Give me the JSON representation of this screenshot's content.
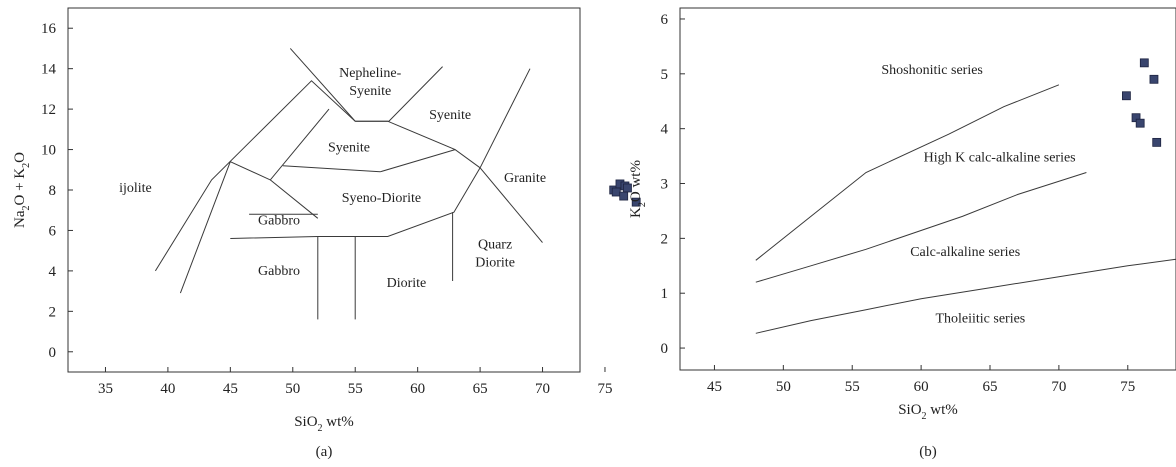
{
  "chart_data": [
    {
      "panel_label": "(a)",
      "type": "scatter",
      "xlabel": {
        "main": "SiO",
        "sub": "2",
        "tail": " wt%"
      },
      "ylabel": {
        "parts": [
          [
            "Na",
            false
          ],
          [
            "2",
            true
          ],
          [
            "O + K",
            false
          ],
          [
            "2",
            true
          ],
          [
            "O",
            false
          ]
        ]
      },
      "xlim": [
        32,
        73
      ],
      "ylim": [
        -1,
        17
      ],
      "xticks": [
        35,
        40,
        45,
        50,
        55,
        60,
        65,
        70,
        75
      ],
      "yticks": [
        0,
        2,
        4,
        6,
        8,
        10,
        12,
        14,
        16
      ],
      "field_labels": [
        {
          "lines": [
            "Nepheline-",
            "Syenite"
          ],
          "x": 56.2,
          "y": 13.6
        },
        {
          "lines": [
            "Syenite"
          ],
          "x": 62.6,
          "y": 11.5
        },
        {
          "lines": [
            "Syenite"
          ],
          "x": 54.5,
          "y": 9.9
        },
        {
          "lines": [
            "Syeno-Diorite"
          ],
          "x": 57.1,
          "y": 7.4
        },
        {
          "lines": [
            "Granite"
          ],
          "x": 68.6,
          "y": 8.4
        },
        {
          "lines": [
            "ijolite"
          ],
          "x": 37.4,
          "y": 7.9
        },
        {
          "lines": [
            "Gabbro"
          ],
          "x": 48.9,
          "y": 6.3
        },
        {
          "lines": [
            "Gabbro"
          ],
          "x": 48.9,
          "y": 3.8
        },
        {
          "lines": [
            "Diorite"
          ],
          "x": 59.1,
          "y": 3.2
        },
        {
          "lines": [
            "Quarz",
            "Diorite"
          ],
          "x": 66.2,
          "y": 5.1
        }
      ],
      "boundaries": [
        [
          [
            39,
            4
          ],
          [
            43.5,
            8.5
          ],
          [
            51.5,
            13.4
          ],
          [
            55,
            11.4
          ]
        ],
        [
          [
            49.8,
            15
          ],
          [
            55,
            11.4
          ],
          [
            57.7,
            11.4
          ],
          [
            62,
            14.1
          ]
        ],
        [
          [
            41,
            2.9
          ],
          [
            45,
            9.4
          ],
          [
            48.2,
            8.5
          ],
          [
            52.9,
            12
          ]
        ],
        [
          [
            48.2,
            8.5
          ],
          [
            52,
            6.6
          ]
        ],
        [
          [
            45,
            5.6
          ],
          [
            52,
            5.7
          ],
          [
            57.6,
            5.7
          ],
          [
            62.9,
            6.9
          ],
          [
            65,
            9.1
          ],
          [
            69,
            14
          ]
        ],
        [
          [
            65,
            9.1
          ],
          [
            70,
            5.4
          ]
        ],
        [
          [
            55,
            11.4
          ],
          [
            57.6,
            11.4
          ],
          [
            63,
            10
          ],
          [
            65,
            9.1
          ]
        ],
        [
          [
            49.2,
            9.2
          ],
          [
            57,
            8.9
          ],
          [
            63,
            10
          ]
        ],
        [
          [
            46.5,
            6.8
          ],
          [
            52,
            6.8
          ]
        ],
        [
          [
            52,
            5.7
          ],
          [
            52,
            1.6
          ]
        ],
        [
          [
            55,
            5.7
          ],
          [
            55,
            1.6
          ]
        ],
        [
          [
            62.8,
            6.9
          ],
          [
            62.8,
            3.5
          ]
        ]
      ],
      "points": [
        {
          "x": 75.7,
          "y": 8.0
        },
        {
          "x": 76.2,
          "y": 8.3
        },
        {
          "x": 76.6,
          "y": 8.2
        },
        {
          "x": 75.9,
          "y": 7.9
        },
        {
          "x": 76.8,
          "y": 8.1
        },
        {
          "x": 76.5,
          "y": 7.7
        },
        {
          "x": 77.5,
          "y": 7.4
        }
      ]
    },
    {
      "panel_label": "(b)",
      "type": "scatter",
      "xlabel": {
        "main": "SiO",
        "sub": "2",
        "tail": " wt%"
      },
      "ylabel": {
        "parts": [
          [
            "K",
            false
          ],
          [
            "2",
            true
          ],
          [
            "O wt%",
            false
          ]
        ]
      },
      "xlim": [
        42.5,
        78.5
      ],
      "ylim": [
        -0.4,
        6.2
      ],
      "xticks": [
        45,
        50,
        55,
        60,
        65,
        70,
        75
      ],
      "yticks": [
        0,
        1,
        2,
        3,
        4,
        5,
        6
      ],
      "field_labels": [
        {
          "lines": [
            "Shoshonitic series"
          ],
          "x": 60.8,
          "y": 5.0
        },
        {
          "lines": [
            "High K calc-alkaline series"
          ],
          "x": 65.7,
          "y": 3.4
        },
        {
          "lines": [
            "Calc-alkaline series"
          ],
          "x": 63.2,
          "y": 1.68
        },
        {
          "lines": [
            "Tholeiitic series"
          ],
          "x": 64.3,
          "y": 0.47
        }
      ],
      "boundaries": [
        [
          [
            48,
            1.6
          ],
          [
            52,
            2.4
          ],
          [
            56,
            3.2
          ],
          [
            62,
            3.9
          ],
          [
            66,
            4.4
          ],
          [
            70,
            4.8
          ]
        ],
        [
          [
            48,
            1.2
          ],
          [
            52,
            1.5
          ],
          [
            56,
            1.8
          ],
          [
            63,
            2.4
          ],
          [
            67,
            2.8
          ],
          [
            72,
            3.2
          ]
        ],
        [
          [
            48,
            0.27
          ],
          [
            52,
            0.5
          ],
          [
            56,
            0.7
          ],
          [
            60,
            0.9
          ],
          [
            65,
            1.1
          ],
          [
            70,
            1.3
          ],
          [
            75,
            1.5
          ],
          [
            78.5,
            1.62
          ]
        ]
      ],
      "points": [
        {
          "x": 76.2,
          "y": 5.2
        },
        {
          "x": 76.9,
          "y": 4.9
        },
        {
          "x": 74.9,
          "y": 4.6
        },
        {
          "x": 75.6,
          "y": 4.2
        },
        {
          "x": 75.9,
          "y": 4.1
        },
        {
          "x": 77.1,
          "y": 3.75
        }
      ]
    }
  ]
}
